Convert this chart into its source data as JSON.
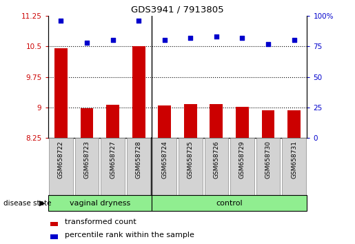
{
  "title": "GDS3941 / 7913805",
  "samples": [
    "GSM658722",
    "GSM658723",
    "GSM658727",
    "GSM658728",
    "GSM658724",
    "GSM658725",
    "GSM658726",
    "GSM658729",
    "GSM658730",
    "GSM658731"
  ],
  "bar_values": [
    10.45,
    8.98,
    9.06,
    10.5,
    9.04,
    9.08,
    9.08,
    9.02,
    8.93,
    8.93
  ],
  "scatter_values": [
    96,
    78,
    80,
    96,
    80,
    82,
    83,
    82,
    77,
    80
  ],
  "bar_color": "#cc0000",
  "scatter_color": "#0000cc",
  "ylim_left": [
    8.25,
    11.25
  ],
  "ylim_right": [
    0,
    100
  ],
  "yticks_left": [
    8.25,
    9.0,
    9.75,
    10.5,
    11.25
  ],
  "yticks_left_labels": [
    "8.25",
    "9",
    "9.75",
    "10.5",
    "11.25"
  ],
  "yticks_right": [
    0,
    25,
    50,
    75,
    100
  ],
  "yticks_right_labels": [
    "0",
    "25",
    "50",
    "75",
    "100%"
  ],
  "hlines": [
    9.0,
    9.75,
    10.5
  ],
  "group1_label": "vaginal dryness",
  "group2_label": "control",
  "group1_count": 4,
  "group2_count": 6,
  "legend_bar_label": "transformed count",
  "legend_scatter_label": "percentile rank within the sample",
  "disease_state_label": "disease state",
  "bar_bottom": 8.25,
  "background_color": "#ffffff",
  "plot_bg_color": "#ffffff",
  "group_bg_color": "#90ee90",
  "tick_label_area_color": "#d3d3d3"
}
